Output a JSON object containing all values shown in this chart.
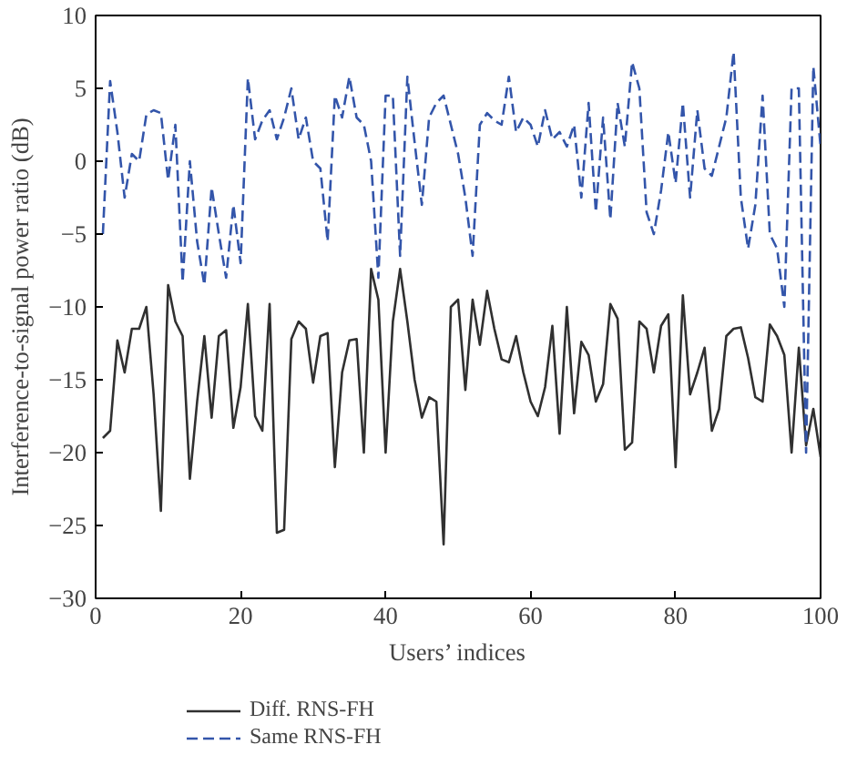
{
  "chart_data": {
    "type": "line",
    "xlabel": "Users’ indices",
    "ylabel": "Interference-to-signal power ratio (dB)",
    "x": [
      1,
      2,
      3,
      4,
      5,
      6,
      7,
      8,
      9,
      10,
      11,
      12,
      13,
      14,
      15,
      16,
      17,
      18,
      19,
      20,
      21,
      22,
      23,
      24,
      25,
      26,
      27,
      28,
      29,
      30,
      31,
      32,
      33,
      34,
      35,
      36,
      37,
      38,
      39,
      40,
      41,
      42,
      43,
      44,
      45,
      46,
      47,
      48,
      49,
      50,
      51,
      52,
      53,
      54,
      55,
      56,
      57,
      58,
      59,
      60,
      61,
      62,
      63,
      64,
      65,
      66,
      67,
      68,
      69,
      70,
      71,
      72,
      73,
      74,
      75,
      76,
      77,
      78,
      79,
      80,
      81,
      82,
      83,
      84,
      85,
      86,
      87,
      88,
      89,
      90,
      91,
      92,
      93,
      94,
      95,
      96,
      97,
      98,
      99,
      100
    ],
    "xlim": [
      0,
      100
    ],
    "xticks": [
      0,
      20,
      40,
      60,
      80,
      100
    ],
    "ylim": [
      -30,
      10
    ],
    "yticks": [
      10,
      5,
      0,
      -5,
      -10,
      -15,
      -20,
      -25,
      -30
    ],
    "grid": false,
    "legend": "bottom",
    "marker": "none",
    "series": [
      {
        "name": "Diff. RNS-FH",
        "color": "#303030",
        "line_style": "solid",
        "values": [
          -19,
          -18.5,
          -12.3,
          -14.5,
          -11.5,
          -11.5,
          -10,
          -16,
          -24,
          -8.5,
          -11,
          -12,
          -21.8,
          -16.5,
          -12,
          -17.6,
          -12,
          -11.6,
          -18.3,
          -15.5,
          -9.8,
          -17.5,
          -18.5,
          -9.8,
          -25.5,
          -25.3,
          -12.2,
          -11,
          -11.5,
          -15.2,
          -12,
          -11.8,
          -21,
          -14.5,
          -12.3,
          -12.2,
          -20,
          -7.4,
          -9.5,
          -20,
          -11,
          -7.4,
          -11,
          -15,
          -17.6,
          -16.2,
          -16.5,
          -26.3,
          -10,
          -9.5,
          -15.7,
          -9.5,
          -12.6,
          -8.9,
          -11.5,
          -13.6,
          -13.8,
          -12,
          -14.5,
          -16.5,
          -17.5,
          -15.5,
          -11.3,
          -18.7,
          -10,
          -17.3,
          -12.4,
          -13.3,
          -16.5,
          -15.3,
          -9.8,
          -10.8,
          -19.8,
          -19.3,
          -11,
          -11.5,
          -14.5,
          -11.3,
          -10.5,
          -21,
          -9.2,
          -16,
          -14.5,
          -12.8,
          -18.5,
          -17,
          -12,
          -11.5,
          -11.4,
          -13.5,
          -16.2,
          -16.5,
          -11.2,
          -12,
          -13.3,
          -20,
          -12.8,
          -19.5,
          -17,
          -20.3
        ]
      },
      {
        "name": "Same RNS-FH",
        "color": "#3355aa",
        "line_style": "dashed",
        "values": [
          -5,
          5.5,
          2,
          -2.5,
          0.5,
          0,
          3.2,
          3.5,
          3.3,
          -1.3,
          2.5,
          -8.3,
          0,
          -5.5,
          -8.5,
          -1.8,
          -5,
          -8,
          -3,
          -7,
          5.7,
          1.5,
          2.8,
          3.5,
          1.5,
          3,
          5,
          1.5,
          3,
          0,
          -0.5,
          -5.5,
          4.5,
          3,
          5.8,
          3,
          2.5,
          0,
          -8,
          4.5,
          4.5,
          -6.5,
          5.8,
          1.3,
          -3,
          3,
          4,
          4.5,
          2.5,
          0.5,
          -2.5,
          -6.5,
          2.5,
          3.3,
          2.8,
          2.5,
          5.8,
          2,
          3,
          2.5,
          1,
          3.5,
          1.5,
          2,
          1,
          2.5,
          -2.5,
          4,
          -3.5,
          3,
          -4,
          4,
          1,
          6.8,
          5,
          -3.5,
          -5,
          -2,
          2,
          -1.5,
          4,
          -2.5,
          3.5,
          -0.5,
          -1,
          1,
          3,
          7.5,
          -2.5,
          -6,
          -3,
          4.5,
          -5,
          -6,
          -10,
          5,
          5,
          -20,
          6.5,
          1
        ]
      }
    ]
  }
}
